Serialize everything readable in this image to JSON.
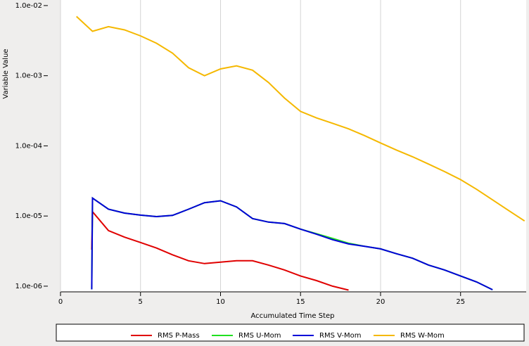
{
  "chart_data": {
    "type": "line",
    "x_label": "Accumulated Time Step",
    "y_label": "Variable Value",
    "xlim": [
      0,
      29.1
    ],
    "xticks": [
      0,
      5,
      10,
      15,
      20,
      25
    ],
    "ylim": [
      8.3e-07,
      0.012
    ],
    "yticks": [
      {
        "value": 0.01,
        "label": "1.0e-02"
      },
      {
        "value": 0.001,
        "label": "1.0e-03"
      },
      {
        "value": 0.0001,
        "label": "1.0e-04"
      },
      {
        "value": 1e-05,
        "label": "1.0e-05"
      },
      {
        "value": 1e-06,
        "label": "1.0e-06"
      }
    ],
    "log_y": true,
    "grid": true,
    "legend": "bottom",
    "series": [
      {
        "name": "RMS P-Mass",
        "color": "#e00000",
        "x": [
          1.95,
          2,
          3,
          4,
          5,
          6,
          7,
          8,
          9,
          10,
          11,
          12,
          13,
          14,
          15,
          16,
          17,
          18
        ],
        "values": [
          3.3e-06,
          1.15e-05,
          6.2e-06,
          5e-06,
          4.2e-06,
          3.5e-06,
          2.8e-06,
          2.3e-06,
          2.1e-06,
          2.2e-06,
          2.3e-06,
          2.3e-06,
          2e-06,
          1.7e-06,
          1.4e-06,
          1.2e-06,
          1e-06,
          8.8e-07
        ]
      },
      {
        "name": "RMS U-Mom",
        "color": "#20e020",
        "x": [
          1.95,
          2,
          3,
          4,
          5,
          6,
          7,
          8,
          9,
          10,
          11,
          12,
          13,
          14,
          15,
          16,
          17,
          18,
          19,
          20,
          21,
          22,
          23,
          24,
          25,
          26,
          27
        ],
        "values": [
          9e-07,
          1.8e-05,
          1.25e-05,
          1.1e-05,
          1.03e-05,
          9.8e-06,
          1.02e-05,
          1.25e-05,
          1.55e-05,
          1.65e-05,
          1.35e-05,
          9.2e-06,
          8.2e-06,
          7.8e-06,
          6.5e-06,
          5.6e-06,
          4.8e-06,
          4.1e-06,
          3.7e-06,
          3.4e-06,
          2.9e-06,
          2.5e-06,
          2e-06,
          1.7e-06,
          1.4e-06,
          1.15e-06,
          8.9e-07
        ]
      },
      {
        "name": "RMS V-Mom",
        "color": "#0000d8",
        "x": [
          1.95,
          2,
          3,
          4,
          5,
          6,
          7,
          8,
          9,
          10,
          11,
          12,
          13,
          14,
          15,
          16,
          17,
          18,
          19,
          20,
          21,
          22,
          23,
          24,
          25,
          26,
          27
        ],
        "values": [
          9e-07,
          1.8e-05,
          1.25e-05,
          1.1e-05,
          1.03e-05,
          9.8e-06,
          1.02e-05,
          1.25e-05,
          1.55e-05,
          1.65e-05,
          1.35e-05,
          9.2e-06,
          8.2e-06,
          7.8e-06,
          6.5e-06,
          5.5e-06,
          4.6e-06,
          4e-06,
          3.7e-06,
          3.4e-06,
          2.9e-06,
          2.5e-06,
          2e-06,
          1.7e-06,
          1.4e-06,
          1.15e-06,
          8.9e-07
        ]
      },
      {
        "name": "RMS W-Mom",
        "color": "#f5b800",
        "x": [
          1,
          2,
          3,
          4,
          5,
          6,
          7,
          8,
          9,
          10,
          11,
          12,
          13,
          14,
          15,
          16,
          17,
          18,
          19,
          20,
          21,
          22,
          23,
          24,
          25,
          26,
          27,
          28,
          29
        ],
        "values": [
          0.007,
          0.0043,
          0.005,
          0.0045,
          0.0037,
          0.0029,
          0.0021,
          0.0013,
          0.001,
          0.00125,
          0.00138,
          0.0012,
          0.0008,
          0.00048,
          0.00031,
          0.00025,
          0.00021,
          0.000175,
          0.00014,
          0.00011,
          8.7e-05,
          7e-05,
          5.5e-05,
          4.3e-05,
          3.3e-05,
          2.4e-05,
          1.7e-05,
          1.2e-05,
          8.5e-06
        ]
      }
    ]
  }
}
